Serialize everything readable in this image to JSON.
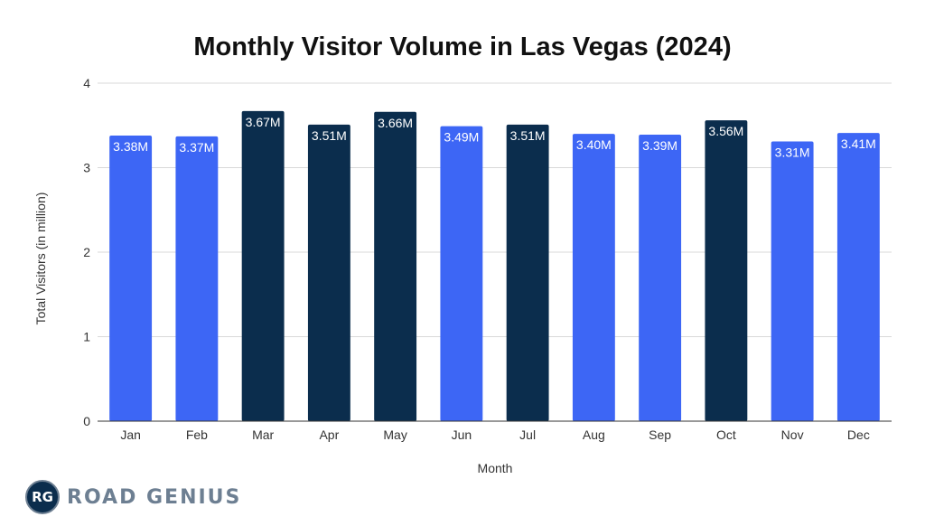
{
  "chart_data": {
    "type": "bar",
    "title": "Monthly Visitor Volume in Las Vegas (2024)",
    "xlabel": "Month",
    "ylabel": "Total Visitors (in million)",
    "ylim": [
      0,
      4
    ],
    "yticks": [
      "0",
      "1",
      "2",
      "3",
      "4"
    ],
    "grid": true,
    "categories": [
      "Jan",
      "Feb",
      "Mar",
      "Apr",
      "May",
      "Jun",
      "Jul",
      "Aug",
      "Sep",
      "Oct",
      "Nov",
      "Dec"
    ],
    "values": [
      3.38,
      3.37,
      3.67,
      3.51,
      3.66,
      3.49,
      3.51,
      3.4,
      3.39,
      3.56,
      3.31,
      3.41
    ],
    "data_labels": [
      "3.38M",
      "3.37M",
      "3.67M",
      "3.51M",
      "3.66M",
      "3.49M",
      "3.51M",
      "3.40M",
      "3.39M",
      "3.56M",
      "3.31M",
      "3.41M"
    ],
    "highlighted": [
      false,
      false,
      true,
      true,
      true,
      false,
      true,
      false,
      false,
      true,
      false,
      false
    ],
    "colors": {
      "default": "#3d66f5",
      "highlight": "#0b2d4d"
    }
  },
  "brand": {
    "logo_text": "RG",
    "name": "ROAD GENIUS"
  }
}
